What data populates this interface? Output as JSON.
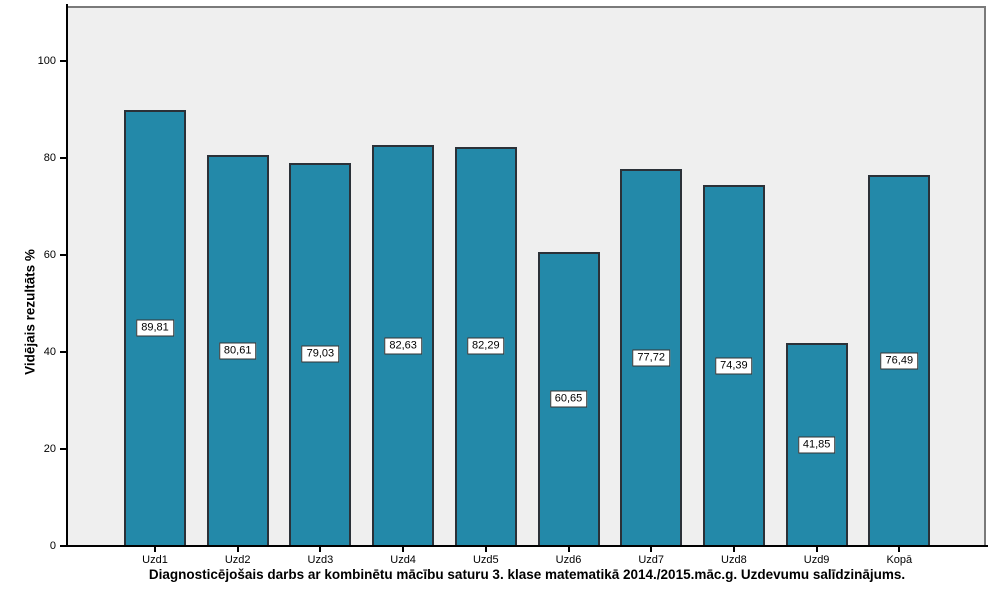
{
  "chart_data": {
    "type": "bar",
    "title": "Diagnosticējošais darbs ar kombinētu mācību saturu 3. klase matematikā 2014./2015.māc.g. Uzdevumu salīdzinājums.",
    "ylabel": "Vidējais rezultāts %",
    "xlabel": "",
    "categories": [
      "Uzd1",
      "Uzd2",
      "Uzd3",
      "Uzd4",
      "Uzd5",
      "Uzd6",
      "Uzd7",
      "Uzd8",
      "Uzd9",
      "Kopā"
    ],
    "values": [
      89.81,
      80.61,
      79.03,
      82.63,
      82.29,
      60.65,
      77.72,
      74.39,
      41.85,
      76.49
    ],
    "value_labels": [
      "89,81",
      "80,61",
      "79,03",
      "82,63",
      "82,29",
      "60,65",
      "77,72",
      "74,39",
      "41,85",
      "76,49"
    ],
    "y_ticks": [
      "0",
      "20",
      "40",
      "60",
      "80",
      "100"
    ],
    "ylim": [
      0,
      111.3
    ],
    "grid": false,
    "legend": "none",
    "colors": {
      "page_bg": "#FFFFFF",
      "plot_bg": "#EFEFEF",
      "bar_fill": "#2389A9",
      "bar_border": "#2B3138",
      "frame_border": "#7A7A7A",
      "axis_line": "#000000",
      "label_box_bg": "#FFFFFF",
      "label_box_border": "#333333"
    }
  }
}
